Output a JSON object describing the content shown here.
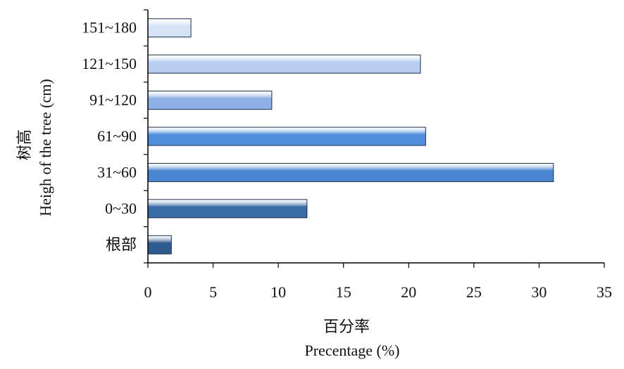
{
  "chart_data": {
    "type": "bar",
    "orientation": "horizontal",
    "categories": [
      "151~180",
      "121~150",
      "91~120",
      "61~90",
      "31~60",
      "0~30",
      "根部"
    ],
    "values": [
      3.3,
      20.9,
      9.5,
      21.3,
      31.1,
      12.2,
      1.8
    ],
    "xlabel_cn": "百分率",
    "xlabel_en": "Precentage (%)",
    "ylabel_cn": "树高",
    "ylabel_en": "Heigh of the tree (cm)",
    "xlim": [
      0,
      35
    ],
    "xticks": [
      0,
      5,
      10,
      15,
      20,
      25,
      30,
      35
    ],
    "grid": false,
    "bar_colors": [
      "#d6e2f6",
      "#b8cdf0",
      "#8fb0e6",
      "#4f8fdc",
      "#4a86d2",
      "#3c6ca8",
      "#2f5a8e"
    ]
  }
}
